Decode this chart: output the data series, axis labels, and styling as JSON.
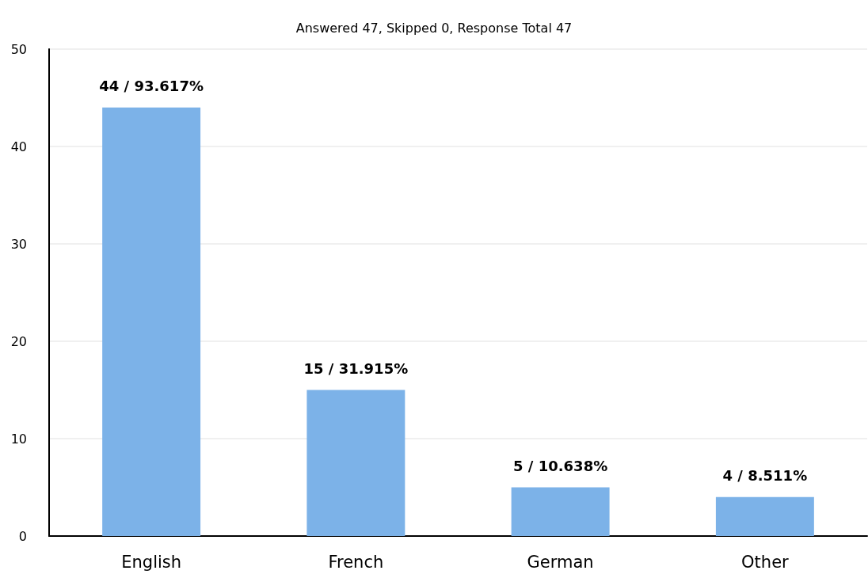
{
  "chart_data": {
    "type": "bar",
    "title": "Answered 47, Skipped 0, Response Total 47",
    "categories": [
      "English",
      "French",
      "German",
      "Other"
    ],
    "values": [
      44,
      15,
      5,
      4
    ],
    "color": "#7cb2e8",
    "value_labels": [
      "44 / 93.617%",
      "15 / 31.915%",
      "5 / 10.638%",
      "4 / 8.511%"
    ],
    "ylim": [
      0,
      50
    ],
    "yticks": [
      0,
      10,
      20,
      30,
      40,
      50
    ],
    "grid": "y"
  }
}
